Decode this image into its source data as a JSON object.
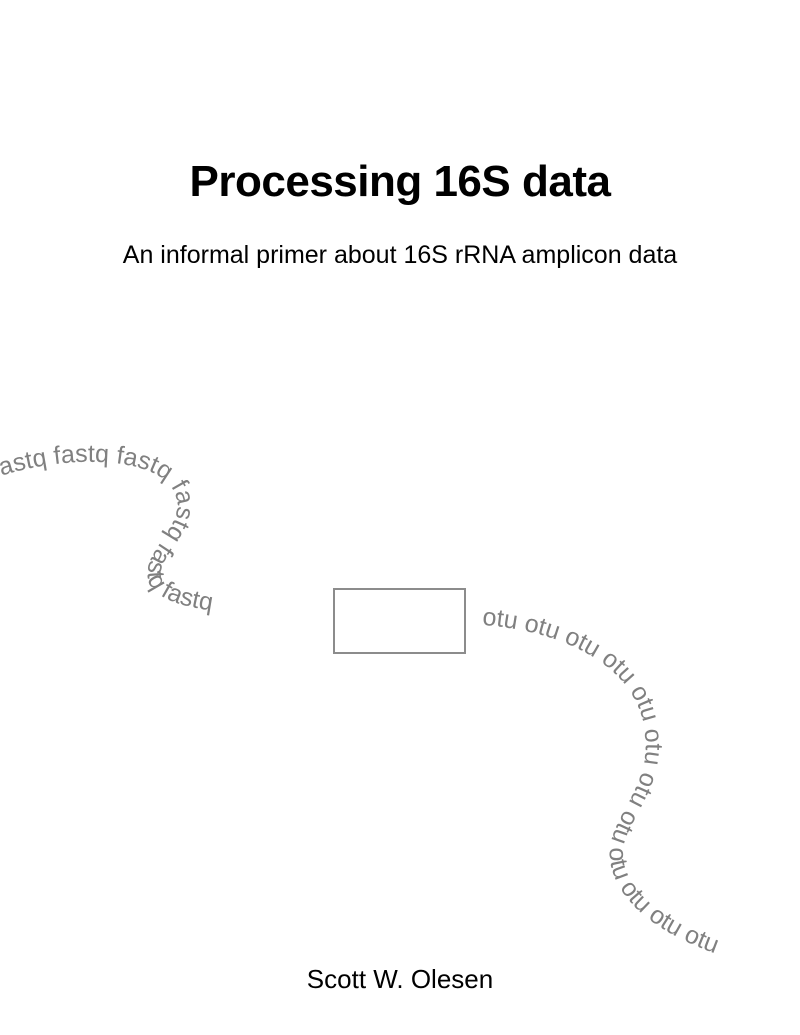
{
  "cover": {
    "title": "Processing 16S data",
    "subtitle": "An informal primer about 16S rRNA amplicon data",
    "author": "Scott W. Olesen"
  },
  "illustration": {
    "input_words": "fastq fastq fastq fastq fastq fastq",
    "output_words": "otu otu otu otu otu otu otu otu otu otu otu otu",
    "text_color": "#808080",
    "box_color": "#8c8c8c"
  }
}
